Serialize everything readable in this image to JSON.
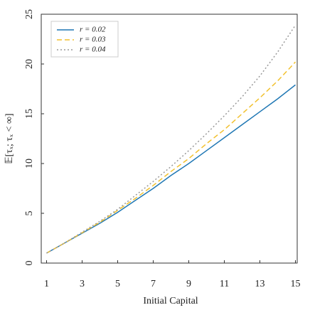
{
  "chart_data": {
    "type": "line",
    "xlabel": "Initial Capital",
    "ylabel": "𝔼[τₓ; τₓ < ∞]",
    "x": [
      1,
      2,
      3,
      4,
      5,
      6,
      7,
      8,
      9,
      10,
      11,
      12,
      13,
      14,
      15
    ],
    "series": [
      {
        "name": "r = 0.02",
        "color": "#1f77b4",
        "dash": "none",
        "values": [
          1,
          2,
          3.0,
          4.0,
          5.1,
          6.3,
          7.5,
          8.8,
          10.0,
          11.3,
          12.6,
          13.9,
          15.2,
          16.5,
          17.9
        ]
      },
      {
        "name": "r = 0.03",
        "color": "#f2c12e",
        "dash": "7,4",
        "values": [
          1,
          2,
          3.05,
          4.1,
          5.3,
          6.5,
          7.8,
          9.2,
          10.5,
          12.0,
          13.4,
          15.0,
          16.6,
          18.3,
          20.2
        ]
      },
      {
        "name": "r = 0.04",
        "color": "#999999",
        "dash": "2,3",
        "values": [
          1,
          2,
          3.1,
          4.2,
          5.4,
          6.8,
          8.2,
          9.7,
          11.3,
          13.0,
          14.8,
          16.7,
          18.8,
          21.2,
          23.9
        ]
      }
    ],
    "xlim": [
      0.7,
      15.1
    ],
    "ylim": [
      0,
      25
    ],
    "xticks": [
      1,
      3,
      5,
      7,
      9,
      11,
      13,
      15
    ],
    "yticks": [
      0,
      5,
      10,
      15,
      20,
      25
    ],
    "legend": "upper-left",
    "grid": false
  }
}
